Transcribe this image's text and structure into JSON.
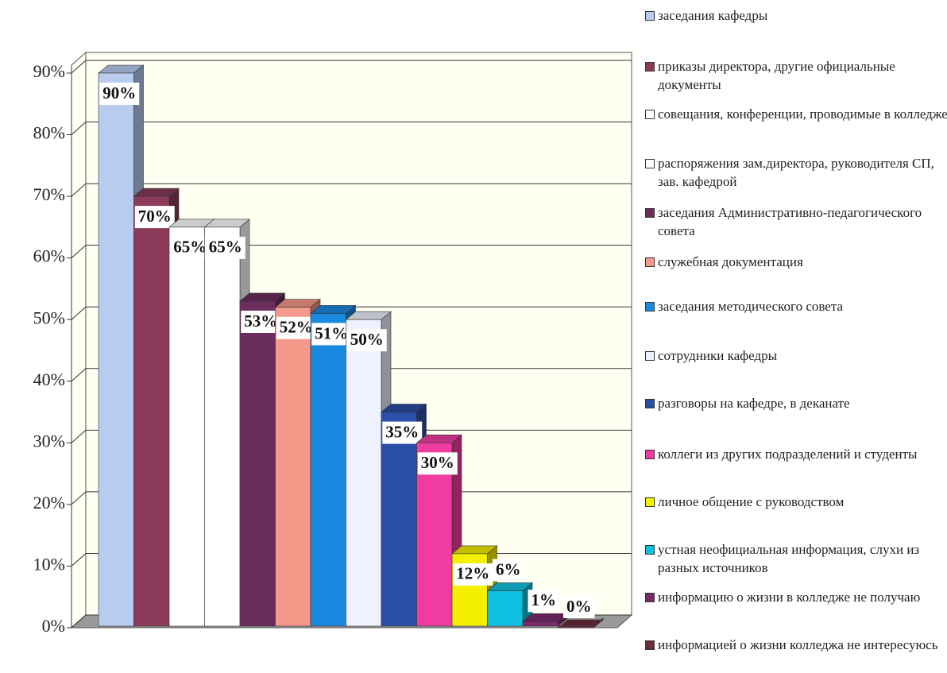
{
  "chart_data": {
    "type": "bar",
    "ylim": [
      0,
      90
    ],
    "yticks": [
      {
        "value": 0,
        "label": "0%"
      },
      {
        "value": 10,
        "label": "10%"
      },
      {
        "value": 20,
        "label": "20%"
      },
      {
        "value": 30,
        "label": "30%"
      },
      {
        "value": 40,
        "label": "40%"
      },
      {
        "value": 50,
        "label": "50%"
      },
      {
        "value": 60,
        "label": "60%"
      },
      {
        "value": 70,
        "label": "70%"
      },
      {
        "value": 80,
        "label": "80%"
      },
      {
        "value": 90,
        "label": "90%"
      }
    ],
    "grid": true,
    "legend": "right",
    "series": [
      {
        "name": "заседания кафедры",
        "color": "#b8ccf0",
        "values": [
          90
        ],
        "value_labels": [
          "90%"
        ]
      },
      {
        "name": "приказы директора, другие официальные документы",
        "color": "#8b3a5a",
        "values": [
          70
        ],
        "value_labels": [
          "70%"
        ]
      },
      {
        "name": "совещания, конференции, проводимые в колледже",
        "color": "#ffffff",
        "values": [
          65
        ],
        "value_labels": [
          "65%"
        ]
      },
      {
        "name": "распоряжения зам.директора, руководителя СП, зав. кафедрой",
        "color": "#ffffff",
        "values": [
          65
        ],
        "value_labels": [
          "65%"
        ]
      },
      {
        "name": "заседания Административно-педагогического совета",
        "color": "#6b2d5e",
        "values": [
          53
        ],
        "value_labels": [
          "53%"
        ]
      },
      {
        "name": "служебная документация",
        "color": "#f59a8a",
        "values": [
          52
        ],
        "value_labels": [
          "52%"
        ]
      },
      {
        "name": "заседания методического совета",
        "color": "#1a8ae0",
        "values": [
          51
        ],
        "value_labels": [
          "51%"
        ]
      },
      {
        "name": "сотрудники кафедры",
        "color": "#eef2ff",
        "values": [
          50
        ],
        "value_labels": [
          "50%"
        ]
      },
      {
        "name": "разговоры на кафедре, в деканате",
        "color": "#2a4fa8",
        "values": [
          35
        ],
        "value_labels": [
          "35%"
        ]
      },
      {
        "name": "коллеги из других подразделений и студенты",
        "color": "#f03ca0",
        "values": [
          30
        ],
        "value_labels": [
          "30%"
        ]
      },
      {
        "name": "личное общение с руководством",
        "color": "#f5f000",
        "values": [
          12
        ],
        "value_labels": [
          "12%"
        ]
      },
      {
        "name": "устная неофициальная информация, слухи из разных источников",
        "color": "#10c0e0",
        "values": [
          6
        ],
        "value_labels": [
          "6%"
        ]
      },
      {
        "name": "информацию о жизни в колледже не получаю",
        "color": "#7a2a6a",
        "values": [
          1
        ],
        "value_labels": [
          "1%"
        ]
      },
      {
        "name": "информацией о жизни колледжа не интересуюсь",
        "color": "#6b2d3a",
        "values": [
          0
        ],
        "value_labels": [
          "0%"
        ]
      }
    ]
  }
}
